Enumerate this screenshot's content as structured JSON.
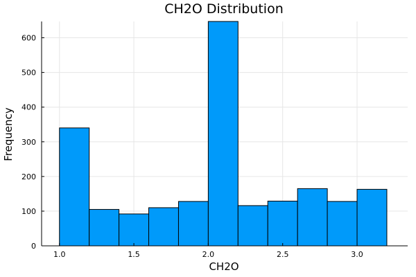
{
  "chart_data": {
    "type": "bar",
    "title": "CH2O Distribution",
    "xlabel": "CH2O",
    "ylabel": "Frequency",
    "bin_edges": [
      1.0,
      1.2,
      1.4,
      1.6,
      1.8,
      2.0,
      2.2,
      2.4,
      2.6,
      2.8,
      3.0,
      3.2
    ],
    "values": [
      340,
      105,
      92,
      110,
      128,
      647,
      116,
      129,
      165,
      128,
      163
    ],
    "xlim": [
      0.88,
      3.34
    ],
    "ylim": [
      0,
      647
    ],
    "xticks": [
      1.0,
      1.5,
      2.0,
      2.5,
      3.0
    ],
    "xtick_labels": [
      "1.0",
      "1.5",
      "2.0",
      "2.5",
      "3.0"
    ],
    "yticks": [
      0,
      100,
      200,
      300,
      400,
      500,
      600
    ],
    "ytick_labels": [
      "0",
      "100",
      "200",
      "300",
      "400",
      "500",
      "600"
    ],
    "grid": true,
    "legend": "none",
    "bar_color": "#009AFA"
  }
}
